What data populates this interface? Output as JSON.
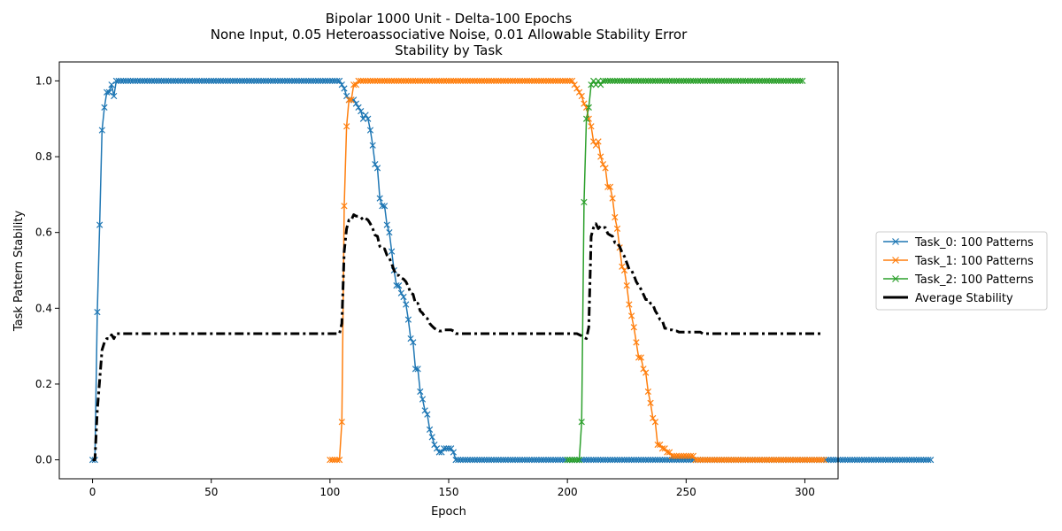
{
  "chart_data": {
    "type": "line",
    "title_lines": [
      "Bipolar 1000 Unit - Delta-100 Epochs",
      "None Input, 0.05 Heteroassociative Noise, 0.01 Allowable Stability Error",
      "Stability by Task"
    ],
    "xlabel": "Epoch",
    "ylabel": "Task Pattern Stability",
    "xlim": [
      -14,
      314
    ],
    "ylim": [
      -0.05,
      1.05
    ],
    "xticks": [
      0,
      50,
      100,
      150,
      200,
      250,
      300
    ],
    "yticks": [
      0.0,
      0.2,
      0.4,
      0.6,
      0.8,
      1.0
    ],
    "xtick_labels": [
      "0",
      "50",
      "100",
      "150",
      "200",
      "250",
      "300"
    ],
    "ytick_labels": [
      "0.0",
      "0.2",
      "0.4",
      "0.6",
      "0.8",
      "1.0"
    ],
    "grid": false,
    "legend_position": "outside-right",
    "series": [
      {
        "name": "Task_0: 100 Patterns",
        "color": "#1f77b4",
        "marker": "x",
        "start": 0,
        "values": [
          0.0,
          0.0,
          0.39,
          0.62,
          0.87,
          0.93,
          0.97,
          0.97,
          0.99,
          0.96,
          1.0,
          1.0,
          1.0,
          1.0,
          1.0,
          1.0,
          1.0,
          1.0,
          1.0,
          1.0,
          1.0,
          1.0,
          1.0,
          1.0,
          1.0,
          1.0,
          1.0,
          1.0,
          1.0,
          1.0,
          1.0,
          1.0,
          1.0,
          1.0,
          1.0,
          1.0,
          1.0,
          1.0,
          1.0,
          1.0,
          1.0,
          1.0,
          1.0,
          1.0,
          1.0,
          1.0,
          1.0,
          1.0,
          1.0,
          1.0,
          1.0,
          1.0,
          1.0,
          1.0,
          1.0,
          1.0,
          1.0,
          1.0,
          1.0,
          1.0,
          1.0,
          1.0,
          1.0,
          1.0,
          1.0,
          1.0,
          1.0,
          1.0,
          1.0,
          1.0,
          1.0,
          1.0,
          1.0,
          1.0,
          1.0,
          1.0,
          1.0,
          1.0,
          1.0,
          1.0,
          1.0,
          1.0,
          1.0,
          1.0,
          1.0,
          1.0,
          1.0,
          1.0,
          1.0,
          1.0,
          1.0,
          1.0,
          1.0,
          1.0,
          1.0,
          1.0,
          1.0,
          1.0,
          1.0,
          1.0,
          1.0,
          1.0,
          1.0,
          1.0,
          1.0,
          0.99,
          0.98,
          0.96,
          0.95,
          0.95,
          0.95,
          0.94,
          0.93,
          0.92,
          0.9,
          0.91,
          0.9,
          0.87,
          0.83,
          0.78,
          0.77,
          0.69,
          0.67,
          0.67,
          0.62,
          0.6,
          0.55,
          0.5,
          0.46,
          0.46,
          0.44,
          0.43,
          0.41,
          0.37,
          0.32,
          0.31,
          0.24,
          0.24,
          0.18,
          0.16,
          0.13,
          0.12,
          0.08,
          0.06,
          0.04,
          0.03,
          0.02,
          0.02,
          0.03,
          0.03,
          0.03,
          0.03,
          0.02,
          0.0,
          0.0,
          0.0,
          0.0,
          0.0,
          0.0,
          0.0,
          0.0,
          0.0,
          0.0,
          0.0,
          0.0,
          0.0,
          0.0,
          0.0,
          0.0,
          0.0,
          0.0,
          0.0,
          0.0,
          0.0,
          0.0,
          0.0,
          0.0,
          0.0,
          0.0,
          0.0,
          0.0,
          0.0,
          0.0,
          0.0,
          0.0,
          0.0,
          0.0,
          0.0,
          0.0,
          0.0,
          0.0,
          0.0,
          0.0,
          0.0,
          0.0,
          0.0,
          0.0,
          0.0,
          0.0,
          0.0,
          0.0,
          0.0,
          0.0,
          0.0,
          0.0,
          0.0,
          0.0,
          0.0,
          0.0,
          0.0,
          0.0,
          0.0,
          0.0,
          0.0,
          0.0,
          0.0,
          0.0,
          0.0,
          0.0,
          0.0,
          0.0,
          0.0,
          0.0,
          0.0,
          0.0,
          0.0,
          0.0,
          0.0,
          0.0,
          0.0,
          0.0,
          0.0,
          0.0,
          0.0,
          0.0,
          0.0,
          0.0,
          0.0,
          0.0,
          0.0,
          0.0,
          0.0,
          0.0,
          0.0,
          0.0,
          0.0,
          0.0,
          0.0,
          0.0,
          0.0,
          0.0,
          0.0,
          0.0,
          0.0,
          0.0,
          0.0,
          0.0,
          0.0,
          0.0,
          0.0,
          0.0,
          0.0,
          0.0,
          0.0,
          0.0,
          0.0,
          0.0,
          0.0,
          0.0,
          0.0,
          0.0,
          0.0,
          0.0,
          0.0,
          0.0,
          0.0,
          0.0,
          0.0,
          0.0,
          0.0,
          0.0,
          0.0,
          0.0,
          0.0,
          0.0,
          0.0,
          0.0,
          0.0,
          0.0,
          0.0,
          0.0,
          0.0,
          0.0,
          0.0,
          0.0,
          0.0,
          0.0,
          0.0,
          0.0,
          0.0,
          0.0,
          0.0,
          0.0,
          0.0,
          0.0,
          0.0,
          0.0,
          0.0,
          0.0,
          0.0,
          0.0,
          0.0,
          0.0,
          0.0,
          0.0,
          0.0,
          0.0,
          0.0,
          0.0,
          0.0,
          0.0,
          0.0,
          0.0,
          0.0,
          0.0,
          0.0,
          0.0,
          0.0,
          0.0,
          0.0,
          0.0,
          0.0,
          0.0,
          0.0,
          0.0,
          0.0,
          0.0,
          0.0,
          0.0,
          0.0,
          0.0,
          0.0,
          0.0,
          0.0,
          0.0,
          0.0,
          0.0,
          0.0,
          0.0,
          0.0,
          0.0,
          0.0,
          0.0,
          0.0
        ]
      },
      {
        "name": "Task_1: 100 Patterns",
        "color": "#ff7f0e",
        "marker": "x",
        "start": 100,
        "values": [
          0.0,
          0.0,
          0.0,
          0.0,
          0.0,
          0.1,
          0.67,
          0.88,
          0.95,
          0.95,
          0.99,
          0.99,
          1.0,
          1.0,
          1.0,
          1.0,
          1.0,
          1.0,
          1.0,
          1.0,
          1.0,
          1.0,
          1.0,
          1.0,
          1.0,
          1.0,
          1.0,
          1.0,
          1.0,
          1.0,
          1.0,
          1.0,
          1.0,
          1.0,
          1.0,
          1.0,
          1.0,
          1.0,
          1.0,
          1.0,
          1.0,
          1.0,
          1.0,
          1.0,
          1.0,
          1.0,
          1.0,
          1.0,
          1.0,
          1.0,
          1.0,
          1.0,
          1.0,
          1.0,
          1.0,
          1.0,
          1.0,
          1.0,
          1.0,
          1.0,
          1.0,
          1.0,
          1.0,
          1.0,
          1.0,
          1.0,
          1.0,
          1.0,
          1.0,
          1.0,
          1.0,
          1.0,
          1.0,
          1.0,
          1.0,
          1.0,
          1.0,
          1.0,
          1.0,
          1.0,
          1.0,
          1.0,
          1.0,
          1.0,
          1.0,
          1.0,
          1.0,
          1.0,
          1.0,
          1.0,
          1.0,
          1.0,
          1.0,
          1.0,
          1.0,
          1.0,
          1.0,
          1.0,
          1.0,
          1.0,
          1.0,
          1.0,
          1.0,
          0.99,
          0.98,
          0.97,
          0.96,
          0.94,
          0.93,
          0.9,
          0.88,
          0.84,
          0.83,
          0.84,
          0.8,
          0.78,
          0.77,
          0.72,
          0.72,
          0.69,
          0.64,
          0.61,
          0.56,
          0.51,
          0.5,
          0.46,
          0.41,
          0.38,
          0.35,
          0.31,
          0.27,
          0.27,
          0.24,
          0.23,
          0.18,
          0.15,
          0.11,
          0.1,
          0.04,
          0.04,
          0.03,
          0.03,
          0.02,
          0.02,
          0.01,
          0.01,
          0.01,
          0.01,
          0.01,
          0.01,
          0.01,
          0.01,
          0.01,
          0.01,
          0.0,
          0.0,
          0.0,
          0.0,
          0.0,
          0.0,
          0.0,
          0.0,
          0.0,
          0.0,
          0.0,
          0.0,
          0.0,
          0.0,
          0.0,
          0.0,
          0.0,
          0.0,
          0.0,
          0.0,
          0.0,
          0.0,
          0.0,
          0.0,
          0.0,
          0.0,
          0.0,
          0.0,
          0.0,
          0.0,
          0.0,
          0.0,
          0.0,
          0.0,
          0.0,
          0.0,
          0.0,
          0.0,
          0.0,
          0.0,
          0.0,
          0.0,
          0.0,
          0.0,
          0.0,
          0.0,
          0.0,
          0.0,
          0.0,
          0.0,
          0.0,
          0.0,
          0.0,
          0.0,
          0.0
        ]
      },
      {
        "name": "Task_2: 100 Patterns",
        "color": "#2ca02c",
        "marker": "x",
        "start": 200,
        "values": [
          0.0,
          0.0,
          0.0,
          0.0,
          0.0,
          0.0,
          0.1,
          0.68,
          0.9,
          0.93,
          0.99,
          1.0,
          0.99,
          1.0,
          0.99,
          1.0,
          1.0,
          1.0,
          1.0,
          1.0,
          1.0,
          1.0,
          1.0,
          1.0,
          1.0,
          1.0,
          1.0,
          1.0,
          1.0,
          1.0,
          1.0,
          1.0,
          1.0,
          1.0,
          1.0,
          1.0,
          1.0,
          1.0,
          1.0,
          1.0,
          1.0,
          1.0,
          1.0,
          1.0,
          1.0,
          1.0,
          1.0,
          1.0,
          1.0,
          1.0,
          1.0,
          1.0,
          1.0,
          1.0,
          1.0,
          1.0,
          1.0,
          1.0,
          1.0,
          1.0,
          1.0,
          1.0,
          1.0,
          1.0,
          1.0,
          1.0,
          1.0,
          1.0,
          1.0,
          1.0,
          1.0,
          1.0,
          1.0,
          1.0,
          1.0,
          1.0,
          1.0,
          1.0,
          1.0,
          1.0,
          1.0,
          1.0,
          1.0,
          1.0,
          1.0,
          1.0,
          1.0,
          1.0,
          1.0,
          1.0,
          1.0,
          1.0,
          1.0,
          1.0,
          1.0,
          1.0,
          1.0,
          1.0,
          1.0,
          1.0
        ]
      },
      {
        "name": "Average Stability",
        "color": "#000000",
        "marker": "none",
        "linestyle": "dashdot",
        "start": 0,
        "values": [
          0.0,
          0.0,
          0.13,
          0.21,
          0.29,
          0.31,
          0.32,
          0.32,
          0.33,
          0.32,
          0.333,
          0.333,
          0.333,
          0.333,
          0.333,
          0.333,
          0.333,
          0.333,
          0.333,
          0.333,
          0.333,
          0.333,
          0.333,
          0.333,
          0.333,
          0.333,
          0.333,
          0.333,
          0.333,
          0.333,
          0.333,
          0.333,
          0.333,
          0.333,
          0.333,
          0.333,
          0.333,
          0.333,
          0.333,
          0.333,
          0.333,
          0.333,
          0.333,
          0.333,
          0.333,
          0.333,
          0.333,
          0.333,
          0.333,
          0.333,
          0.333,
          0.333,
          0.333,
          0.333,
          0.333,
          0.333,
          0.333,
          0.333,
          0.333,
          0.333,
          0.333,
          0.333,
          0.333,
          0.333,
          0.333,
          0.333,
          0.333,
          0.333,
          0.333,
          0.333,
          0.333,
          0.333,
          0.333,
          0.333,
          0.333,
          0.333,
          0.333,
          0.333,
          0.333,
          0.333,
          0.333,
          0.333,
          0.333,
          0.333,
          0.333,
          0.333,
          0.333,
          0.333,
          0.333,
          0.333,
          0.333,
          0.333,
          0.333,
          0.333,
          0.333,
          0.333,
          0.333,
          0.333,
          0.333,
          0.333,
          0.333,
          0.333,
          0.333,
          0.333,
          0.333,
          0.36,
          0.55,
          0.61,
          0.633,
          0.633,
          0.647,
          0.643,
          0.643,
          0.64,
          0.633,
          0.637,
          0.633,
          0.623,
          0.61,
          0.593,
          0.59,
          0.563,
          0.557,
          0.557,
          0.54,
          0.533,
          0.517,
          0.5,
          0.487,
          0.487,
          0.48,
          0.477,
          0.47,
          0.457,
          0.44,
          0.437,
          0.413,
          0.413,
          0.393,
          0.387,
          0.377,
          0.373,
          0.36,
          0.353,
          0.347,
          0.343,
          0.34,
          0.34,
          0.343,
          0.343,
          0.343,
          0.343,
          0.34,
          0.333,
          0.333,
          0.333,
          0.333,
          0.333,
          0.333,
          0.333,
          0.333,
          0.333,
          0.333,
          0.333,
          0.333,
          0.333,
          0.333,
          0.333,
          0.333,
          0.333,
          0.333,
          0.333,
          0.333,
          0.333,
          0.333,
          0.333,
          0.333,
          0.333,
          0.333,
          0.333,
          0.333,
          0.333,
          0.333,
          0.333,
          0.333,
          0.333,
          0.333,
          0.333,
          0.333,
          0.333,
          0.333,
          0.333,
          0.333,
          0.333,
          0.333,
          0.333,
          0.333,
          0.333,
          0.333,
          0.333,
          0.333,
          0.333,
          0.333,
          0.333,
          0.333,
          0.33,
          0.327,
          0.323,
          0.32,
          0.35,
          0.59,
          0.613,
          0.623,
          0.61,
          0.617,
          0.613,
          0.613,
          0.597,
          0.593,
          0.59,
          0.573,
          0.573,
          0.563,
          0.547,
          0.537,
          0.52,
          0.503,
          0.5,
          0.487,
          0.47,
          0.46,
          0.45,
          0.437,
          0.423,
          0.423,
          0.413,
          0.41,
          0.393,
          0.383,
          0.37,
          0.367,
          0.347,
          0.347,
          0.343,
          0.343,
          0.34,
          0.34,
          0.337,
          0.337,
          0.337,
          0.337,
          0.337,
          0.337,
          0.337,
          0.337,
          0.337,
          0.337,
          0.333,
          0.333,
          0.333,
          0.333,
          0.333,
          0.333,
          0.333,
          0.333,
          0.333,
          0.333,
          0.333,
          0.333,
          0.333,
          0.333,
          0.333,
          0.333,
          0.333,
          0.333,
          0.333,
          0.333,
          0.333,
          0.333,
          0.333,
          0.333,
          0.333,
          0.333,
          0.333,
          0.333,
          0.333,
          0.333,
          0.333,
          0.333,
          0.333,
          0.333,
          0.333,
          0.333,
          0.333,
          0.333,
          0.333,
          0.333,
          0.333,
          0.333,
          0.333,
          0.333,
          0.333,
          0.333,
          0.333,
          0.333,
          0.333,
          0.333,
          0.333
        ]
      }
    ]
  }
}
